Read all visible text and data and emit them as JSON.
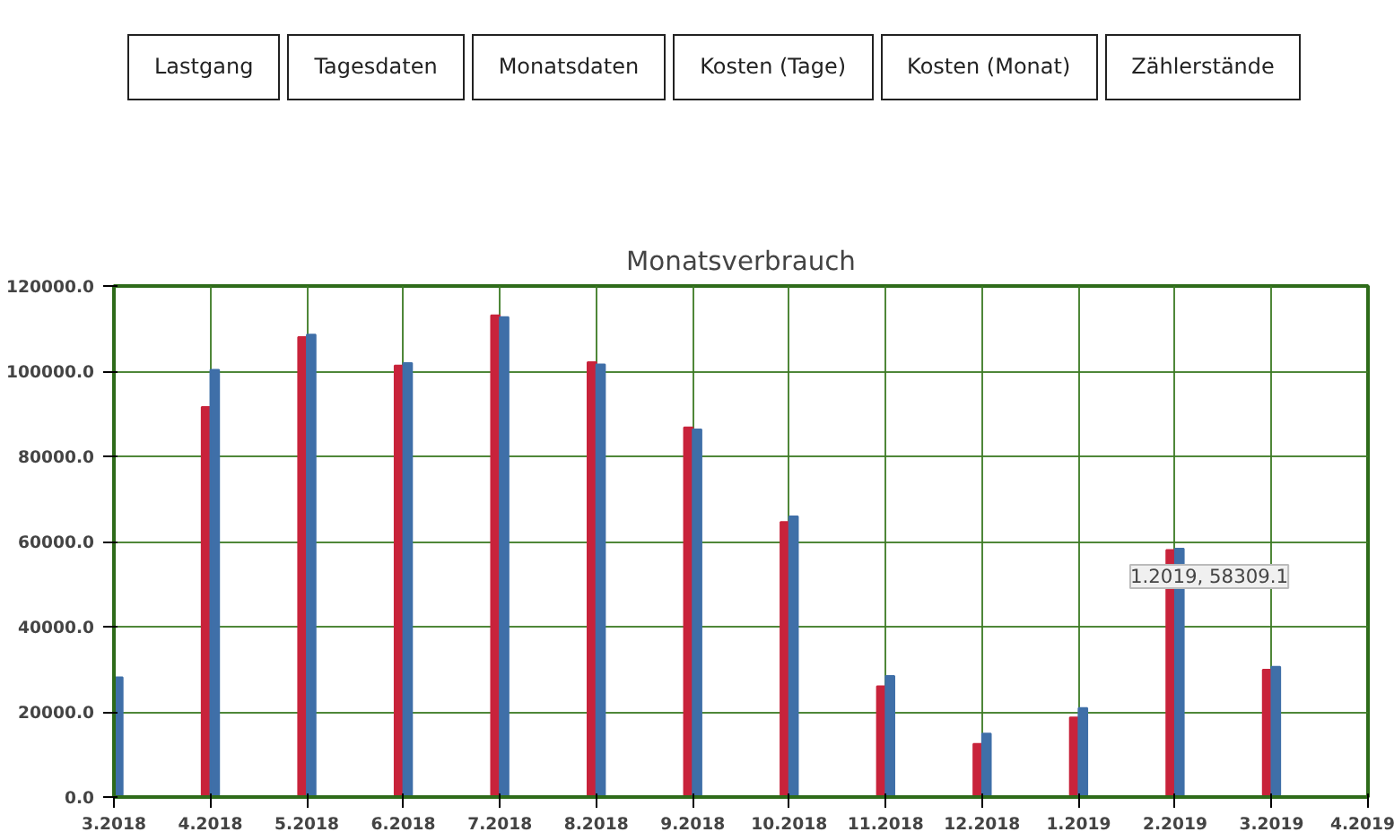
{
  "chart_data": {
    "type": "bar",
    "title": "Monatsverbrauch",
    "categories": [
      "3.2018",
      "4.2018",
      "5.2018",
      "6.2018",
      "7.2018",
      "8.2018",
      "9.2018",
      "10.2018",
      "11.2018",
      "12.2018",
      "1.2019",
      "2.2019",
      "3.2019",
      "4.2019"
    ],
    "series": [
      {
        "color": "#c8233b",
        "values": [
          null,
          91600,
          108000,
          101300,
          113100,
          102100,
          86800,
          64600,
          26000,
          12500,
          18700,
          58000,
          29900,
          null
        ]
      },
      {
        "color": "#3f6fa8",
        "values": [
          28100,
          100300,
          108600,
          101900,
          112700,
          101600,
          86300,
          65900,
          28400,
          14900,
          20900,
          58309.1,
          30600,
          null
        ]
      }
    ],
    "ylim": [
      0,
      120000
    ],
    "yticks": [
      {
        "value": 0,
        "label": "0.0"
      },
      {
        "value": 20000,
        "label": "20000.0"
      },
      {
        "value": 40000,
        "label": "40000.0"
      },
      {
        "value": 60000,
        "label": "60000.0"
      },
      {
        "value": 80000,
        "label": "80000.0"
      },
      {
        "value": 100000,
        "label": "100000.0"
      },
      {
        "value": 120000,
        "label": "120000.0"
      }
    ],
    "grid": true,
    "annotations": [
      "Lastgang",
      "Tagesdaten",
      "Monatsdaten",
      "Kosten (Tage)",
      "Kosten (Monat)",
      "Zählerstände",
      {
        "text": "1.2019, 58309.1",
        "x": "2.2019",
        "y": 58309.1
      }
    ]
  }
}
